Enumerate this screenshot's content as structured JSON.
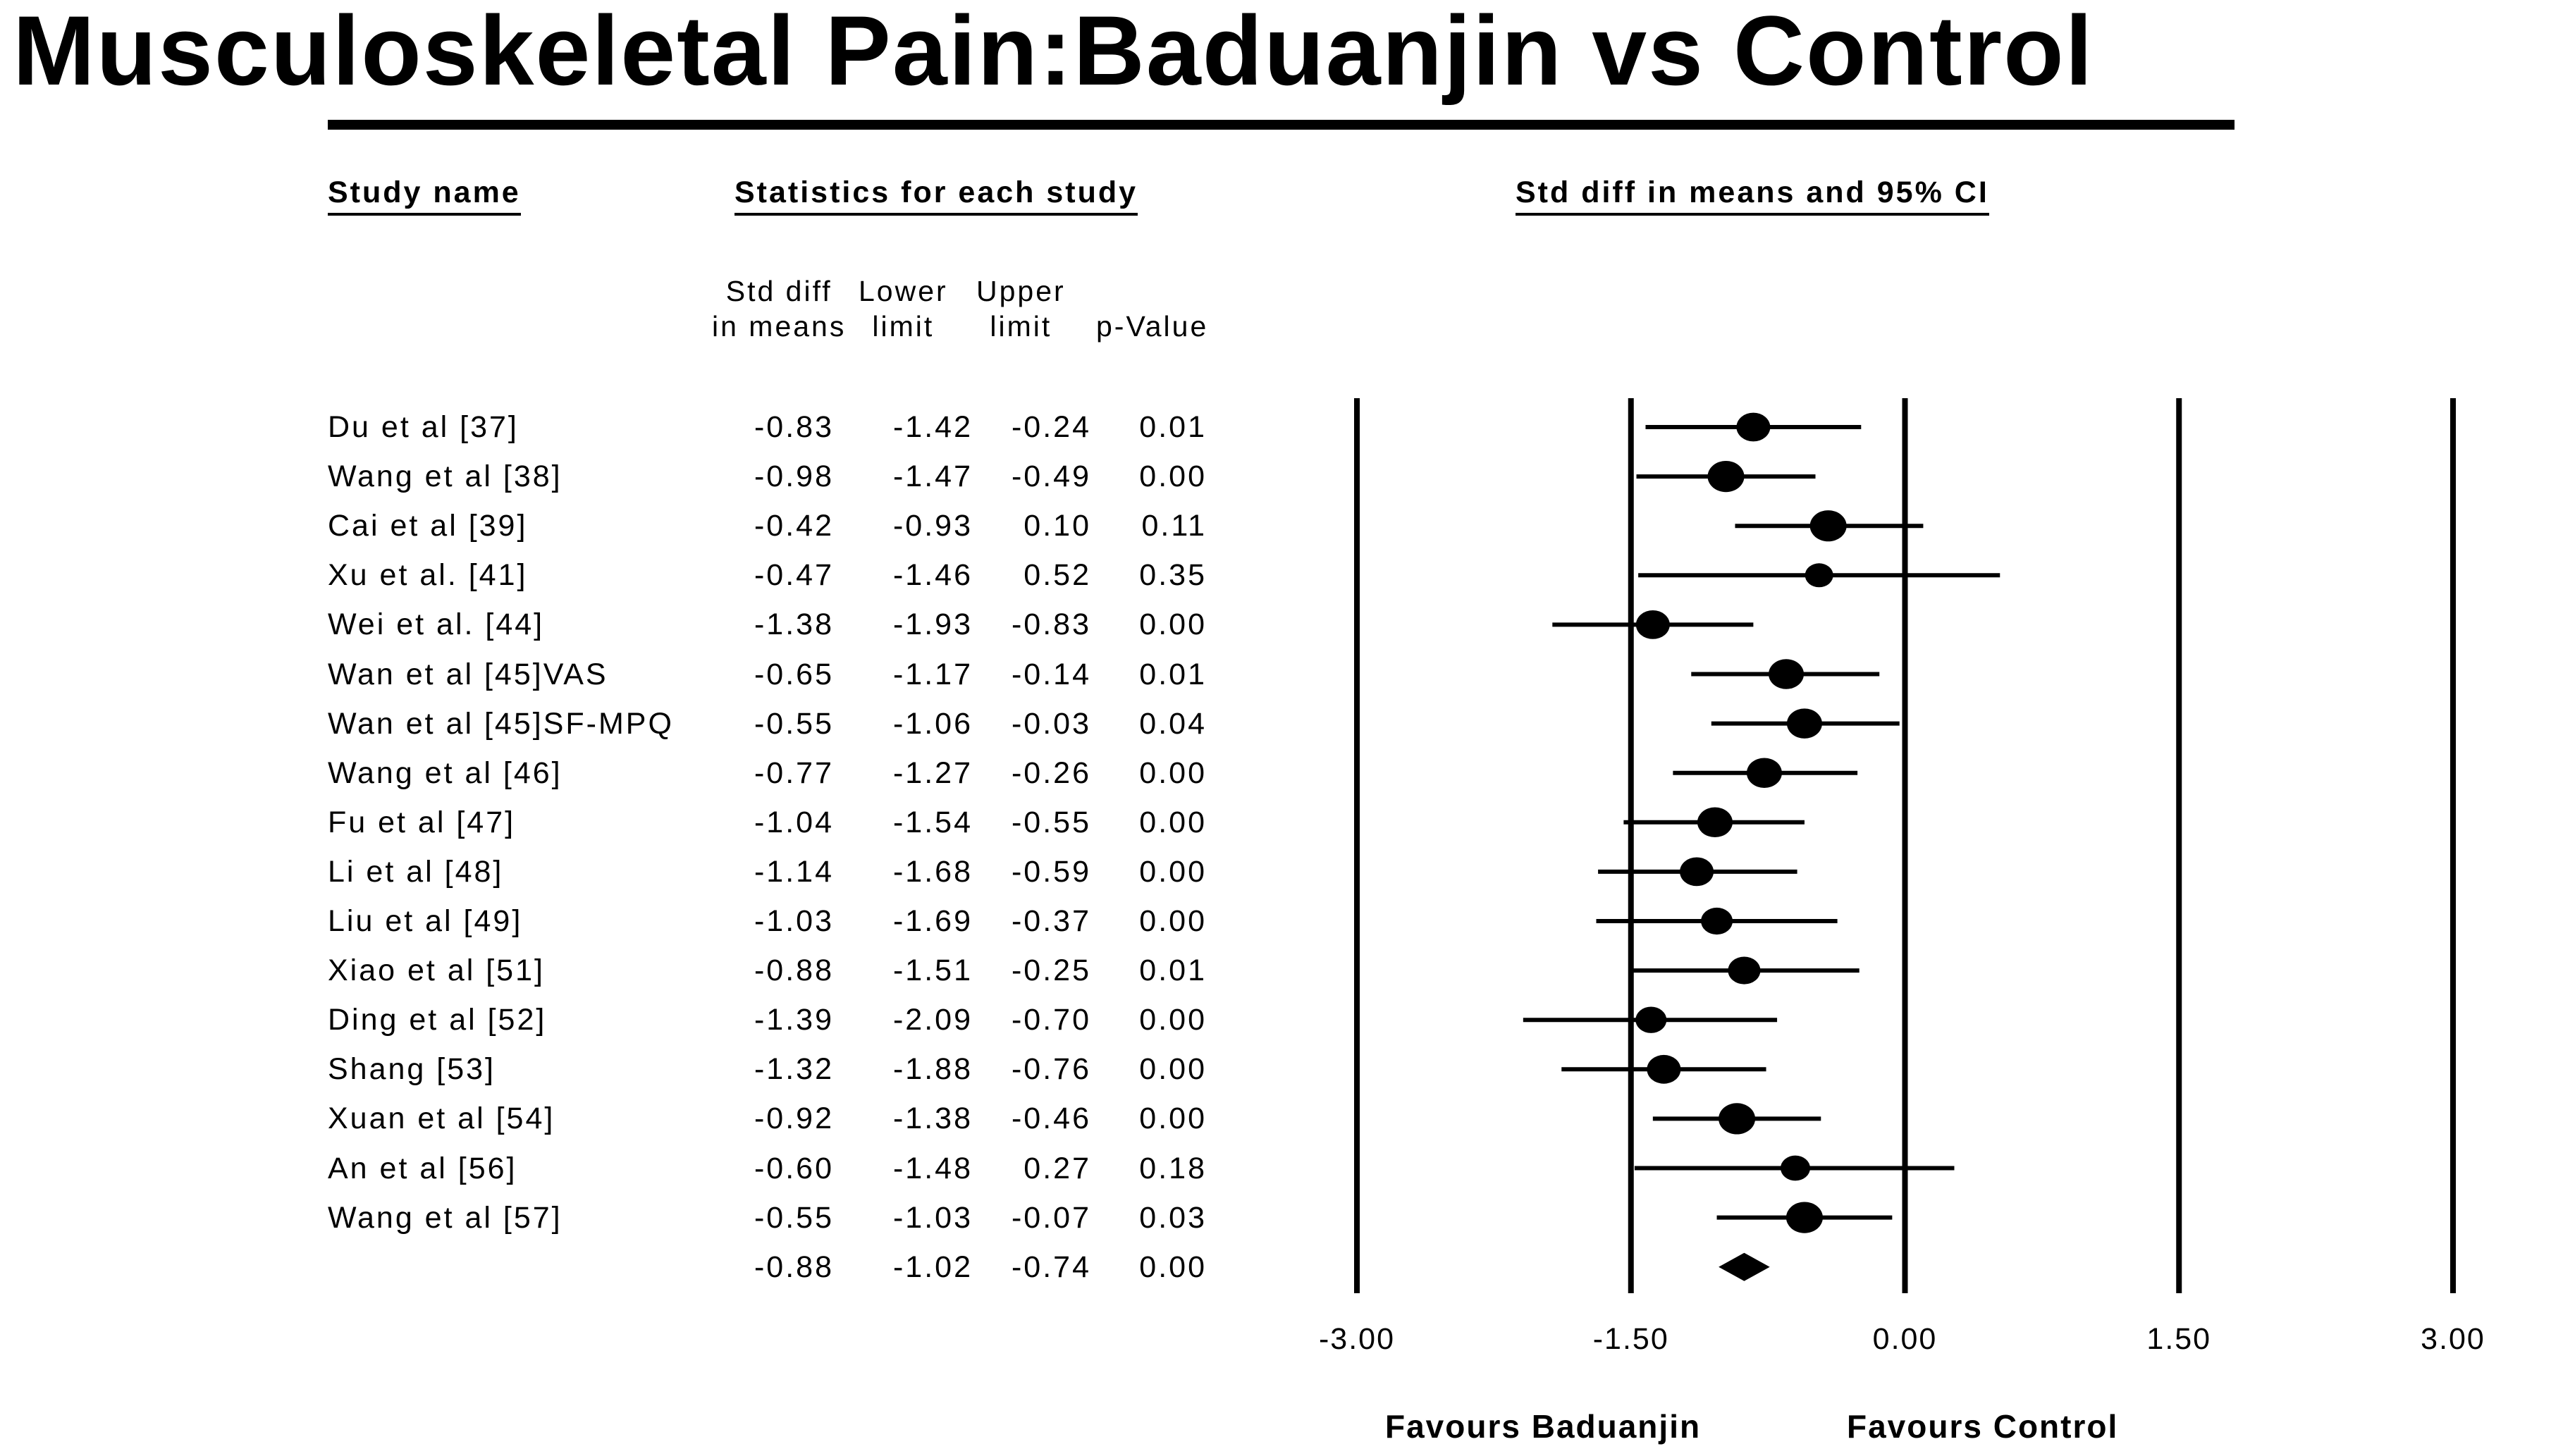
{
  "title": "Musculoskeletal Pain:Baduanjin vs Control",
  "headers": {
    "study_name": "Study name",
    "statistics": "Statistics for each study",
    "effect": "Std diff in means and 95% CI"
  },
  "column_headers": {
    "std_diff": [
      "Std diff",
      "in means"
    ],
    "lower": [
      "Lower",
      "limit"
    ],
    "upper": [
      "Upper",
      "limit"
    ],
    "p": [
      "",
      "p-Value"
    ]
  },
  "footer_labels": {
    "left": "Favours Baduanjin",
    "right": "Favours Control"
  },
  "colors": {
    "ink": "#000000",
    "background": "#ffffff"
  },
  "chart_data": {
    "type": "forest",
    "title": "Musculoskeletal Pain:Baduanjin vs Control",
    "xlabel": "Std diff in means and 95% CI",
    "xlim": [
      -3.0,
      3.0
    ],
    "xticks": [
      -3.0,
      -1.5,
      0.0,
      1.5,
      3.0
    ],
    "tick_labels": [
      "-3.00",
      "-1.50",
      "0.00",
      "1.50",
      "3.00"
    ],
    "studies": [
      {
        "name": "Du et al [37]",
        "std_diff": "-0.83",
        "lower": "-1.42",
        "upper": "-0.24",
        "p": "0.01",
        "weight": 1.0
      },
      {
        "name": "Wang et al [38]",
        "std_diff": "-0.98",
        "lower": "-1.47",
        "upper": "-0.49",
        "p": "0.00",
        "weight": 1.2
      },
      {
        "name": "Cai et al [39]",
        "std_diff": "-0.42",
        "lower": "-0.93",
        "upper": "0.10",
        "p": "0.11",
        "weight": 1.2
      },
      {
        "name": "Xu et al. [41]",
        "std_diff": "-0.47",
        "lower": "-1.46",
        "upper": "0.52",
        "p": "0.35",
        "weight": 0.6
      },
      {
        "name": "Wei et al. [44]",
        "std_diff": "-1.38",
        "lower": "-1.93",
        "upper": "-0.83",
        "p": "0.00",
        "weight": 1.0
      },
      {
        "name": "Wan et al [45]VAS",
        "std_diff": "-0.65",
        "lower": "-1.17",
        "upper": "-0.14",
        "p": "0.01",
        "weight": 1.1
      },
      {
        "name": "Wan et al [45]SF-MPQ",
        "std_diff": "-0.55",
        "lower": "-1.06",
        "upper": "-0.03",
        "p": "0.04",
        "weight": 1.1
      },
      {
        "name": "Wang et al [46]",
        "std_diff": "-0.77",
        "lower": "-1.27",
        "upper": "-0.26",
        "p": "0.00",
        "weight": 1.1
      },
      {
        "name": "Fu et al [47]",
        "std_diff": "-1.04",
        "lower": "-1.54",
        "upper": "-0.55",
        "p": "0.00",
        "weight": 1.1
      },
      {
        "name": "Li et al [48]",
        "std_diff": "-1.14",
        "lower": "-1.68",
        "upper": "-0.59",
        "p": "0.00",
        "weight": 1.0
      },
      {
        "name": "Liu et al [49]",
        "std_diff": "-1.03",
        "lower": "-1.69",
        "upper": "-0.37",
        "p": "0.00",
        "weight": 0.85
      },
      {
        "name": "Xiao et al [51]",
        "std_diff": "-0.88",
        "lower": "-1.51",
        "upper": "-0.25",
        "p": "0.01",
        "weight": 0.9
      },
      {
        "name": "Ding et al [52]",
        "std_diff": "-1.39",
        "lower": "-2.09",
        "upper": "-0.70",
        "p": "0.00",
        "weight": 0.8
      },
      {
        "name": "Shang [53]",
        "std_diff": "-1.32",
        "lower": "-1.88",
        "upper": "-0.76",
        "p": "0.00",
        "weight": 1.0
      },
      {
        "name": "Xuan et al [54]",
        "std_diff": "-0.92",
        "lower": "-1.38",
        "upper": "-0.46",
        "p": "0.00",
        "weight": 1.2
      },
      {
        "name": "An et al [56]",
        "std_diff": "-0.60",
        "lower": "-1.48",
        "upper": "0.27",
        "p": "0.18",
        "weight": 0.7
      },
      {
        "name": "Wang et al [57]",
        "std_diff": "-0.55",
        "lower": "-1.03",
        "upper": "-0.07",
        "p": "0.03",
        "weight": 1.2
      }
    ],
    "summary": {
      "name": "",
      "std_diff": "-0.88",
      "lower": "-1.02",
      "upper": "-0.74",
      "p": "0.00"
    }
  }
}
